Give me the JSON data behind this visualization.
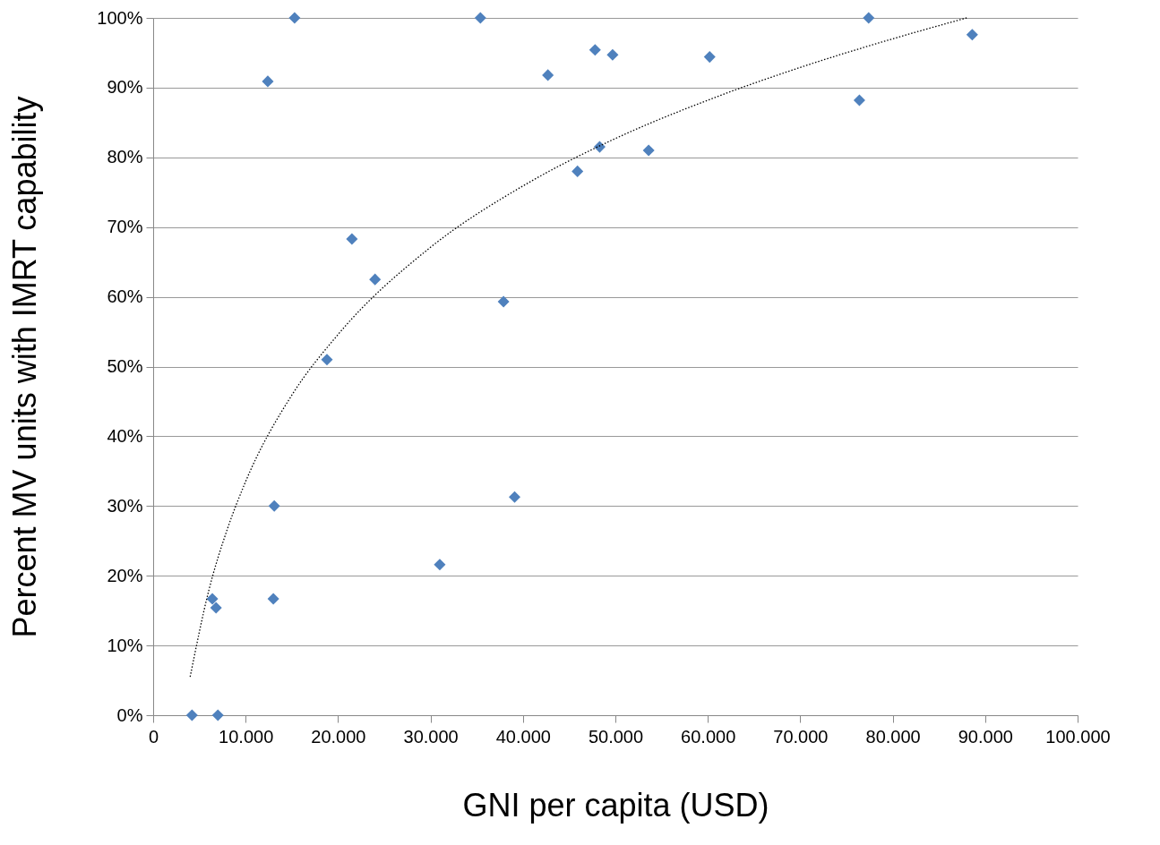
{
  "chart_data": {
    "type": "scatter",
    "xlabel": "GNI per capita (USD)",
    "ylabel": "Percent MV units with IMRT capability",
    "xlim": [
      0,
      100000
    ],
    "ylim": [
      0,
      100
    ],
    "xticks": [
      0,
      {
        "value": 10000,
        "label": "10.000"
      },
      {
        "value": 20000,
        "label": "20.000"
      },
      {
        "value": 30000,
        "label": "30.000"
      },
      {
        "value": 40000,
        "label": "40.000"
      },
      {
        "value": 50000,
        "label": "50.000"
      },
      {
        "value": 60000,
        "label": "60.000"
      },
      {
        "value": 70000,
        "label": "70.000"
      },
      {
        "value": 80000,
        "label": "80.000"
      },
      {
        "value": 90000,
        "label": "90.000"
      },
      {
        "value": 100000,
        "label": "100.000"
      }
    ],
    "yticks": [
      {
        "value": 0,
        "label": "0%"
      },
      {
        "value": 10,
        "label": "10%"
      },
      {
        "value": 20,
        "label": "20%"
      },
      {
        "value": 30,
        "label": "30%"
      },
      {
        "value": 40,
        "label": "40%"
      },
      {
        "value": 50,
        "label": "50%"
      },
      {
        "value": 60,
        "label": "60%"
      },
      {
        "value": 70,
        "label": "70%"
      },
      {
        "value": 80,
        "label": "80%"
      },
      {
        "value": 90,
        "label": "90%"
      },
      {
        "value": 100,
        "label": "100%"
      }
    ],
    "grid": "y",
    "series": [
      {
        "color": "#4f81bd",
        "marker": "diamond",
        "x": [
          4200,
          7000,
          6400,
          6800,
          12400,
          15300,
          13100,
          13000,
          18800,
          21500,
          24000,
          31000,
          35400,
          37900,
          39100,
          42700,
          45900,
          47800,
          48300,
          49700,
          53600,
          60200,
          76400,
          77400,
          88600
        ],
        "values": [
          0,
          0,
          16.7,
          15.4,
          90.9,
          100,
          30.0,
          16.7,
          51.0,
          68.3,
          62.5,
          21.6,
          100,
          59.3,
          31.3,
          91.8,
          78.0,
          95.4,
          81.5,
          94.7,
          81.0,
          94.4,
          88.2,
          100,
          97.6
        ]
      },
      {
        "type": "line",
        "color": "#000000",
        "line_style": "dotted",
        "x": [
          4000,
          6000,
          8000,
          10000,
          15000,
          20000,
          30000,
          40000,
          50000,
          60000,
          70000,
          80000,
          88000
        ],
        "values": [
          5.5,
          17.8,
          26.6,
          33.5,
          45.9,
          54.6,
          67.1,
          75.9,
          82.7,
          88.2,
          92.9,
          97.0,
          100
        ]
      }
    ]
  }
}
